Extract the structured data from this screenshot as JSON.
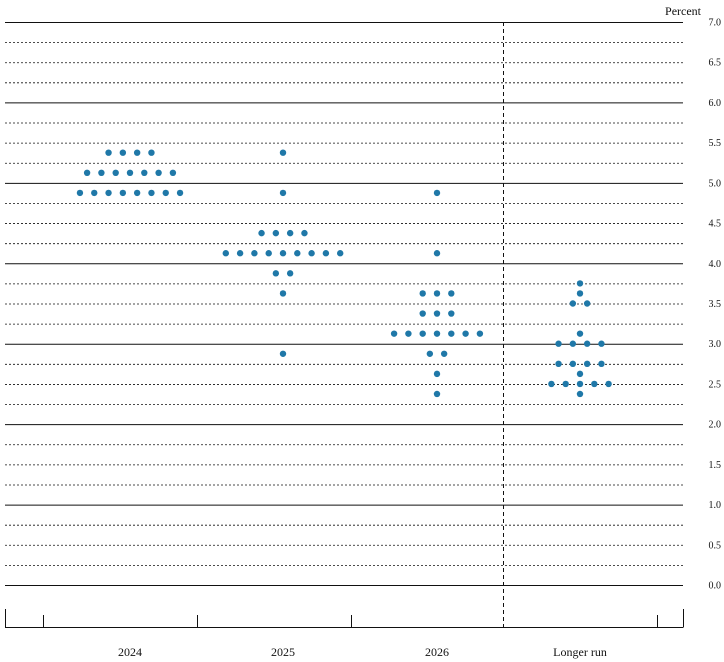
{
  "chart_data": {
    "type": "scatter",
    "title": "",
    "xlabel": "",
    "ylabel": "Percent",
    "ylim": [
      0.0,
      7.0
    ],
    "yticks": [
      "0.0",
      "0.5",
      "1.0",
      "1.5",
      "2.0",
      "2.5",
      "3.0",
      "3.5",
      "4.0",
      "4.5",
      "5.0",
      "5.5",
      "6.0",
      "6.5",
      "7.0"
    ],
    "categories": [
      "2024",
      "2025",
      "2026",
      "Longer run"
    ],
    "dot_color": "#1f78a8",
    "grid": true,
    "separator_before": "Longer run",
    "series": [
      {
        "category": "2024",
        "points": [
          {
            "y": 5.375,
            "count": 4
          },
          {
            "y": 5.125,
            "count": 7
          },
          {
            "y": 4.875,
            "count": 8
          }
        ]
      },
      {
        "category": "2025",
        "points": [
          {
            "y": 5.375,
            "count": 1
          },
          {
            "y": 4.875,
            "count": 1
          },
          {
            "y": 4.375,
            "count": 4
          },
          {
            "y": 4.125,
            "count": 9
          },
          {
            "y": 3.875,
            "count": 2
          },
          {
            "y": 3.625,
            "count": 1
          },
          {
            "y": 2.875,
            "count": 1
          }
        ]
      },
      {
        "category": "2026",
        "points": [
          {
            "y": 4.875,
            "count": 1
          },
          {
            "y": 4.125,
            "count": 1
          },
          {
            "y": 3.625,
            "count": 3
          },
          {
            "y": 3.375,
            "count": 3
          },
          {
            "y": 3.125,
            "count": 7
          },
          {
            "y": 2.875,
            "count": 2
          },
          {
            "y": 2.625,
            "count": 1
          },
          {
            "y": 2.375,
            "count": 1
          }
        ]
      },
      {
        "category": "Longer run",
        "points": [
          {
            "y": 3.75,
            "count": 1
          },
          {
            "y": 3.625,
            "count": 1
          },
          {
            "y": 3.5,
            "count": 2
          },
          {
            "y": 3.125,
            "count": 1
          },
          {
            "y": 3.0,
            "count": 4
          },
          {
            "y": 2.75,
            "count": 4
          },
          {
            "y": 2.625,
            "count": 1
          },
          {
            "y": 2.5,
            "count": 5
          },
          {
            "y": 2.375,
            "count": 1
          }
        ]
      }
    ]
  }
}
